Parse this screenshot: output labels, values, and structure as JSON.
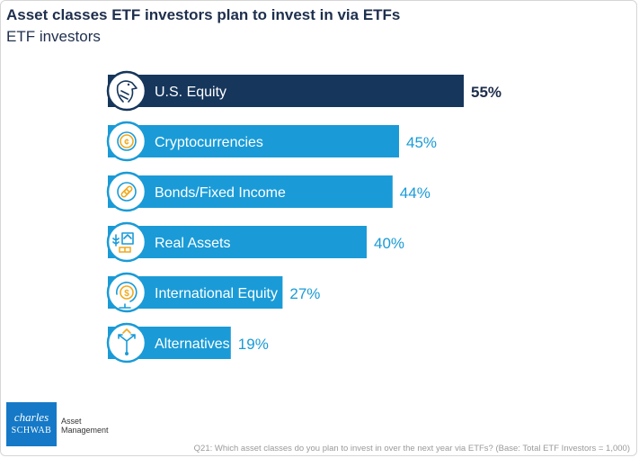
{
  "chart_data": {
    "type": "bar",
    "orientation": "horizontal",
    "title": "Asset classes ETF investors plan to invest in via ETFs",
    "subtitle": "ETF investors",
    "xlim": [
      0,
      55
    ],
    "grid": false,
    "unit": "%",
    "categories": [
      "U.S. Equity",
      "Cryptocurrencies",
      "Bonds/Fixed Income",
      "Real Assets",
      "International Equity",
      "Alternatives"
    ],
    "values": [
      55,
      45,
      44,
      40,
      27,
      19
    ],
    "value_labels": [
      "55%",
      "45%",
      "44%",
      "40%",
      "27%",
      "19%"
    ],
    "icons": [
      "eagle-icon",
      "crypto-coin-icon",
      "chain-link-icon",
      "real-assets-icon",
      "globe-dollar-icon",
      "split-arrows-icon"
    ],
    "colors": {
      "highlight": "#16365c",
      "bar": "#1a9bd7",
      "highlight_label": "#1e2f4d",
      "value_label": "#1a9bd7",
      "icon_stroke": "#1a9bd7",
      "icon_accent": "#f0a91c"
    }
  },
  "branding": {
    "logo_line1": "charles",
    "logo_line2": "SCHWAB",
    "logo_subtitle": "Asset Management",
    "logo_color": "#1579c7"
  },
  "footnote": "Q21: Which asset classes do you plan to invest in over the next year via ETFs? (Base: Total ETF Investors = 1,000)"
}
